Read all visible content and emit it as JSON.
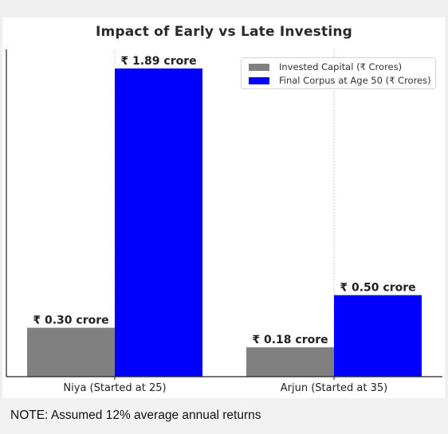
{
  "chart_data": {
    "type": "bar",
    "title": "Impact of Early vs Late Investing",
    "categories": [
      "Niya (Started at 25)",
      "Arjun (Started at 35)"
    ],
    "series": [
      {
        "name": "Invested Capital (₹ Crores)",
        "color": "#808080",
        "values": [
          0.3,
          0.18
        ],
        "labels": [
          "₹ 0.30 crore",
          "₹ 0.18 crore"
        ]
      },
      {
        "name": "Final Corpus at Age 50 (₹ Crores)",
        "color": "#0000ff",
        "values": [
          1.89,
          0.5
        ],
        "labels": [
          "₹ 1.89 crore",
          "₹ 0.50 crore"
        ]
      }
    ],
    "xlabel": "",
    "ylabel": "",
    "ylim": [
      0,
      1.89
    ],
    "grid": "vertical dotted at categories",
    "legend_position": "top-right"
  },
  "note": "NOTE: Assumed 12% average annual returns"
}
